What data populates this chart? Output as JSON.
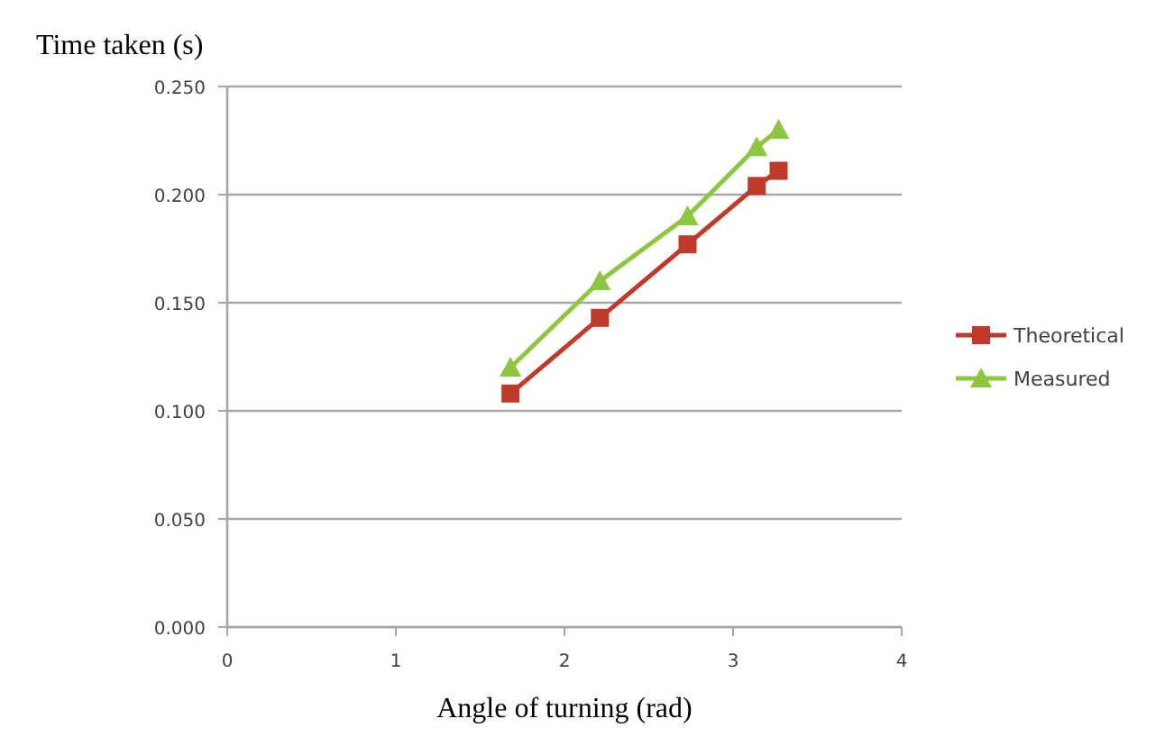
{
  "chart_data": {
    "type": "line",
    "ylabel": "Time taken (s)",
    "xlabel": "Angle of turning (rad)",
    "x": [
      1.68,
      2.21,
      2.73,
      3.14,
      3.27
    ],
    "series": [
      {
        "name": "Theoretical",
        "color": "#c0392b",
        "marker": "square",
        "values": [
          0.108,
          0.143,
          0.177,
          0.204,
          0.211
        ]
      },
      {
        "name": "Measured",
        "color": "#8dc63f",
        "marker": "triangle",
        "values": [
          0.12,
          0.16,
          0.19,
          0.222,
          0.23
        ]
      }
    ],
    "xlim": [
      0,
      4
    ],
    "xticks": [
      0,
      1,
      2,
      3,
      4
    ],
    "ylim": [
      0,
      0.25
    ],
    "yticks": [
      {
        "value": 0,
        "label": "0.000"
      },
      {
        "value": 0.05,
        "label": "0.050"
      },
      {
        "value": 0.1,
        "label": "0.100"
      },
      {
        "value": 0.15,
        "label": "0.150"
      },
      {
        "value": 0.2,
        "label": "0.200"
      },
      {
        "value": 0.25,
        "label": "0.250"
      }
    ],
    "grid": "y",
    "legend": "right",
    "line_style": "solid"
  }
}
